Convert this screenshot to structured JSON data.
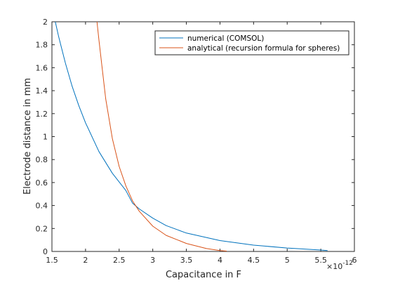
{
  "chart_data": {
    "type": "line",
    "title": "",
    "xlabel": "Capacitance in F",
    "ylabel": "Electrode distance in mm",
    "x_exponent_label": "×10",
    "x_exponent_power": "-12",
    "xlim": [
      1.5,
      6
    ],
    "ylim": [
      0,
      2
    ],
    "xticks": [
      "1.5",
      "2",
      "2.5",
      "3",
      "3.5",
      "4",
      "4.5",
      "5",
      "5.5",
      "6"
    ],
    "yticks": [
      "0",
      "0.2",
      "0.4",
      "0.6",
      "0.8",
      "1",
      "1.2",
      "1.4",
      "1.6",
      "1.8",
      "2"
    ],
    "grid": false,
    "legend_position": "top-right",
    "series": [
      {
        "name": "numerical (COMSOL)",
        "color": "#0072BD",
        "x": [
          1.55,
          1.6,
          1.7,
          1.8,
          1.9,
          2.0,
          2.2,
          2.4,
          2.6,
          2.7,
          2.8,
          3.0,
          3.2,
          3.5,
          4.0,
          4.5,
          5.0,
          5.5,
          5.6
        ],
        "y": [
          2.0,
          1.87,
          1.64,
          1.44,
          1.27,
          1.12,
          0.87,
          0.68,
          0.53,
          0.42,
          0.37,
          0.29,
          0.225,
          0.16,
          0.095,
          0.055,
          0.03,
          0.012,
          0.008
        ]
      },
      {
        "name": "analytical (recursion formula for spheres)",
        "color": "#D95319",
        "x": [
          2.17,
          2.2,
          2.3,
          2.4,
          2.5,
          2.6,
          2.7,
          2.8,
          3.0,
          3.2,
          3.5,
          3.8,
          4.0,
          4.1
        ],
        "y": [
          2.0,
          1.84,
          1.33,
          0.98,
          0.74,
          0.57,
          0.44,
          0.35,
          0.22,
          0.14,
          0.07,
          0.025,
          0.008,
          0.003
        ]
      }
    ]
  }
}
